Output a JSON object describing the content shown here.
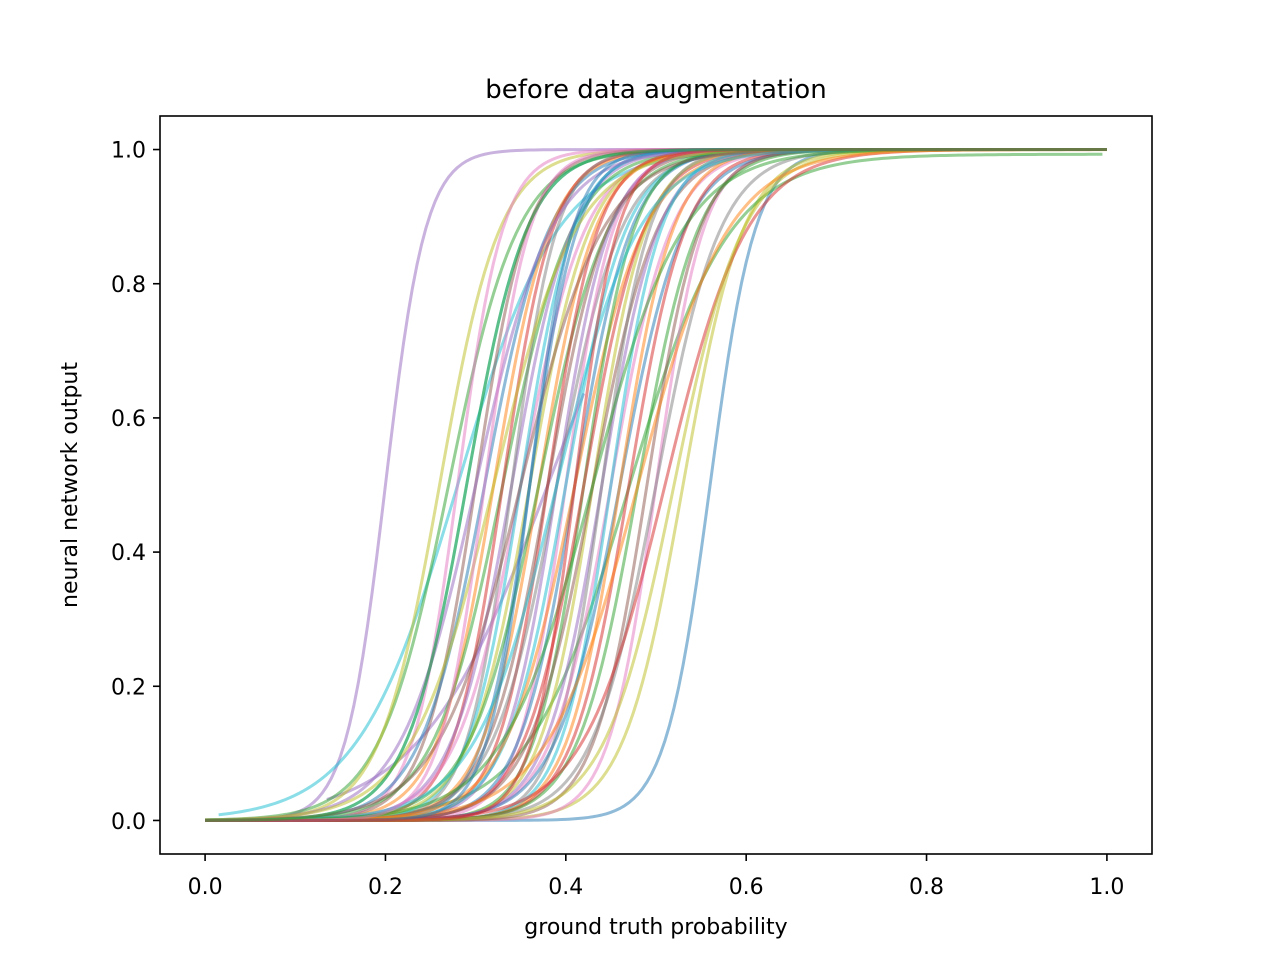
{
  "chart_data": {
    "type": "line",
    "title": "before data augmentation",
    "xlabel": "ground truth probability",
    "ylabel": "neural network output",
    "xlim": [
      -0.05,
      1.05
    ],
    "ylim": [
      -0.05,
      1.05
    ],
    "xticks": [
      0.0,
      0.2,
      0.4,
      0.6,
      0.8,
      1.0
    ],
    "yticks": [
      0.0,
      0.2,
      0.4,
      0.6,
      0.8,
      1.0
    ],
    "xtick_labels": [
      "0.0",
      "0.2",
      "0.4",
      "0.6",
      "0.8",
      "1.0"
    ],
    "ytick_labels": [
      "0.0",
      "0.2",
      "0.4",
      "0.6",
      "0.8",
      "1.0"
    ],
    "grid": false,
    "legend": "none",
    "line_opacity": 0.5,
    "series_model": "logistic sigmoid y = y0 + (y1 - y0) / (1 + exp(-k (x - x50)))",
    "series": [
      {
        "x50": 0.2,
        "k": 45,
        "xmin": 0.0,
        "xmax": 1.0,
        "color": "#9467bd"
      },
      {
        "x50": 0.56,
        "k": 40,
        "xmin": 0.0,
        "xmax": 1.0,
        "color": "#1f77b4"
      },
      {
        "x50": 0.53,
        "k": 30,
        "xmin": 0.0,
        "xmax": 1.0,
        "color": "#bcbd22"
      },
      {
        "x50": 0.47,
        "k": 18,
        "xmin": 0.0,
        "xmax": 0.995,
        "y0": 0.0,
        "y1": 0.993,
        "color": "#2ca02c"
      },
      {
        "x50": 0.38,
        "k": 14,
        "xmin": 0.135,
        "xmax": 0.42,
        "color": "#9467bd"
      },
      {
        "x50": 0.28,
        "k": 18,
        "xmin": 0.015,
        "xmax": 1.0,
        "color": "#17becf"
      },
      {
        "x50": 0.5,
        "k": 38,
        "xmin": 0.0,
        "xmax": 1.0,
        "color": "#e377c2"
      },
      {
        "x50": 0.27,
        "k": 26,
        "xmin": 0.0,
        "xmax": 1.0,
        "color": "#2ca02c"
      },
      {
        "x50": 0.26,
        "k": 30,
        "xmin": 0.0,
        "xmax": 1.0,
        "color": "#bcbd22"
      },
      {
        "x50": 0.28,
        "k": 40,
        "xmin": 0.0,
        "xmax": 1.0,
        "color": "#e377c2"
      },
      {
        "x50": 0.29,
        "k": 30,
        "xmin": 0.0,
        "xmax": 1.0,
        "color": "#17becf"
      },
      {
        "x50": 0.3,
        "k": 35,
        "xmin": 0.0,
        "xmax": 1.0,
        "color": "#8c564b"
      },
      {
        "x50": 0.31,
        "k": 28,
        "xmin": 0.0,
        "xmax": 1.0,
        "color": "#1f77b4"
      },
      {
        "x50": 0.32,
        "k": 32,
        "xmin": 0.0,
        "xmax": 1.0,
        "color": "#ff7f0e"
      },
      {
        "x50": 0.33,
        "k": 26,
        "xmin": 0.0,
        "xmax": 1.0,
        "color": "#2ca02c"
      },
      {
        "x50": 0.33,
        "k": 36,
        "xmin": 0.0,
        "xmax": 1.0,
        "color": "#d62728"
      },
      {
        "x50": 0.34,
        "k": 30,
        "xmin": 0.0,
        "xmax": 1.0,
        "color": "#9467bd"
      },
      {
        "x50": 0.34,
        "k": 40,
        "xmin": 0.0,
        "xmax": 1.0,
        "color": "#7f7f7f"
      },
      {
        "x50": 0.35,
        "k": 28,
        "xmin": 0.0,
        "xmax": 1.0,
        "color": "#e377c2"
      },
      {
        "x50": 0.35,
        "k": 34,
        "xmin": 0.0,
        "xmax": 1.0,
        "color": "#17becf"
      },
      {
        "x50": 0.36,
        "k": 30,
        "xmin": 0.0,
        "xmax": 1.0,
        "color": "#bcbd22"
      },
      {
        "x50": 0.36,
        "k": 38,
        "xmin": 0.0,
        "xmax": 1.0,
        "color": "#1f77b4"
      },
      {
        "x50": 0.37,
        "k": 32,
        "xmin": 0.0,
        "xmax": 1.0,
        "color": "#ff7f0e"
      },
      {
        "x50": 0.37,
        "k": 26,
        "xmin": 0.0,
        "xmax": 1.0,
        "color": "#2ca02c"
      },
      {
        "x50": 0.38,
        "k": 36,
        "xmin": 0.0,
        "xmax": 1.0,
        "color": "#d62728"
      },
      {
        "x50": 0.38,
        "k": 30,
        "xmin": 0.0,
        "xmax": 1.0,
        "color": "#8c564b"
      },
      {
        "x50": 0.39,
        "k": 34,
        "xmin": 0.0,
        "xmax": 1.0,
        "color": "#9467bd"
      },
      {
        "x50": 0.39,
        "k": 28,
        "xmin": 0.0,
        "xmax": 1.0,
        "color": "#7f7f7f"
      },
      {
        "x50": 0.4,
        "k": 38,
        "xmin": 0.0,
        "xmax": 1.0,
        "color": "#e377c2"
      },
      {
        "x50": 0.4,
        "k": 30,
        "xmin": 0.0,
        "xmax": 1.0,
        "color": "#17becf"
      },
      {
        "x50": 0.41,
        "k": 32,
        "xmin": 0.0,
        "xmax": 1.0,
        "color": "#1f77b4"
      },
      {
        "x50": 0.41,
        "k": 26,
        "xmin": 0.0,
        "xmax": 1.0,
        "color": "#ff7f0e"
      },
      {
        "x50": 0.42,
        "k": 36,
        "xmin": 0.0,
        "xmax": 1.0,
        "color": "#2ca02c"
      },
      {
        "x50": 0.42,
        "k": 30,
        "xmin": 0.0,
        "xmax": 1.0,
        "color": "#d62728"
      },
      {
        "x50": 0.43,
        "k": 34,
        "xmin": 0.0,
        "xmax": 1.0,
        "color": "#bcbd22"
      },
      {
        "x50": 0.43,
        "k": 28,
        "xmin": 0.0,
        "xmax": 1.0,
        "color": "#8c564b"
      },
      {
        "x50": 0.44,
        "k": 32,
        "xmin": 0.0,
        "xmax": 1.0,
        "color": "#9467bd"
      },
      {
        "x50": 0.44,
        "k": 38,
        "xmin": 0.0,
        "xmax": 1.0,
        "color": "#7f7f7f"
      },
      {
        "x50": 0.45,
        "k": 30,
        "xmin": 0.0,
        "xmax": 1.0,
        "color": "#e377c2"
      },
      {
        "x50": 0.45,
        "k": 36,
        "xmin": 0.0,
        "xmax": 1.0,
        "color": "#17becf"
      },
      {
        "x50": 0.46,
        "k": 28,
        "xmin": 0.0,
        "xmax": 1.0,
        "color": "#1f77b4"
      },
      {
        "x50": 0.46,
        "k": 34,
        "xmin": 0.0,
        "xmax": 1.0,
        "color": "#ff7f0e"
      },
      {
        "x50": 0.47,
        "k": 32,
        "xmin": 0.0,
        "xmax": 1.0,
        "color": "#d62728"
      },
      {
        "x50": 0.48,
        "k": 30,
        "xmin": 0.0,
        "xmax": 1.0,
        "color": "#2ca02c"
      },
      {
        "x50": 0.49,
        "k": 34,
        "xmin": 0.0,
        "xmax": 1.0,
        "color": "#8c564b"
      },
      {
        "x50": 0.5,
        "k": 28,
        "xmin": 0.0,
        "xmax": 1.0,
        "color": "#7f7f7f"
      },
      {
        "x50": 0.51,
        "k": 22,
        "xmin": 0.0,
        "xmax": 1.0,
        "color": "#d62728"
      },
      {
        "x50": 0.52,
        "k": 26,
        "xmin": 0.0,
        "xmax": 1.0,
        "color": "#bcbd22"
      },
      {
        "x50": 0.3,
        "k": 24,
        "xmin": 0.0,
        "xmax": 1.0,
        "color": "#9467bd"
      },
      {
        "x50": 0.32,
        "k": 22,
        "xmin": 0.0,
        "xmax": 1.0,
        "color": "#bcbd22"
      },
      {
        "x50": 0.35,
        "k": 22,
        "xmin": 0.0,
        "xmax": 1.0,
        "color": "#8c564b"
      },
      {
        "x50": 0.39,
        "k": 22,
        "xmin": 0.0,
        "xmax": 1.0,
        "color": "#17becf"
      },
      {
        "x50": 0.43,
        "k": 20,
        "xmin": 0.0,
        "xmax": 1.0,
        "color": "#2ca02c"
      },
      {
        "x50": 0.48,
        "k": 20,
        "xmin": 0.0,
        "xmax": 1.0,
        "color": "#ff7f0e"
      },
      {
        "x50": 0.31,
        "k": 40,
        "xmin": 0.0,
        "xmax": 1.0,
        "color": "#e377c2"
      },
      {
        "x50": 0.36,
        "k": 42,
        "xmin": 0.0,
        "xmax": 1.0,
        "color": "#1f77b4"
      },
      {
        "x50": 0.41,
        "k": 42,
        "xmin": 0.0,
        "xmax": 1.0,
        "color": "#d62728"
      },
      {
        "x50": 0.29,
        "k": 30,
        "xmin": 0.0,
        "xmax": 1.0,
        "color": "#2ca02c"
      }
    ]
  }
}
